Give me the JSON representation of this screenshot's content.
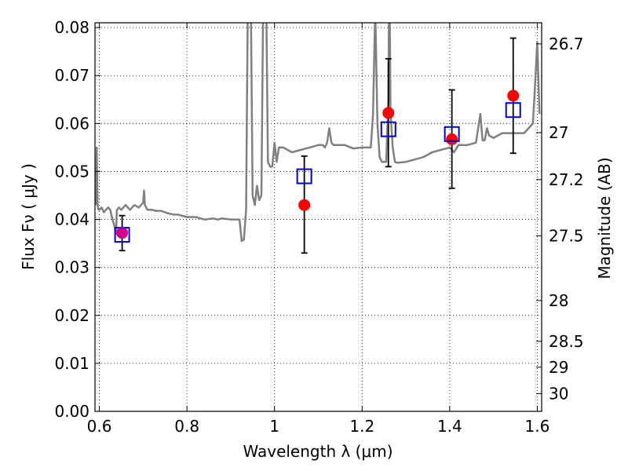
{
  "chart_data": {
    "type": "scatter",
    "title": "",
    "xlabel": "Wavelength  λ (μm)",
    "ylabel": "Flux  Fν  ( μJy )",
    "y2label": "Magnitude (AB)",
    "xlim": [
      0.59,
      1.61
    ],
    "ylim": [
      0.0,
      0.081
    ],
    "grid": true,
    "x_ticks": [
      "0.6",
      "0.8",
      "1",
      "1.2",
      "1.4",
      "1.6"
    ],
    "x_tick_values": [
      0.6,
      0.8,
      1.0,
      1.2,
      1.4,
      1.6
    ],
    "y_ticks": [
      "0.00",
      "0.01",
      "0.02",
      "0.03",
      "0.04",
      "0.05",
      "0.06",
      "0.07",
      "0.08"
    ],
    "y_tick_values": [
      0.0,
      0.01,
      0.02,
      0.03,
      0.04,
      0.05,
      0.06,
      0.07,
      0.08
    ],
    "y2_ticks": [
      {
        "label": "26.7",
        "flux": 0.0766
      },
      {
        "label": "27",
        "flux": 0.0581
      },
      {
        "label": "27.2",
        "flux": 0.0483
      },
      {
        "label": "27.5",
        "flux": 0.0366
      },
      {
        "label": "28",
        "flux": 0.0231
      },
      {
        "label": "28.5",
        "flux": 0.0146
      },
      {
        "label": "29",
        "flux": 0.0092
      },
      {
        "label": "30",
        "flux": 0.0037
      }
    ],
    "series": [
      {
        "kind": "line",
        "color": "#808080",
        "x": [
          0.592,
          0.594,
          0.596,
          0.598,
          0.6,
          0.605,
          0.61,
          0.615,
          0.62,
          0.625,
          0.63,
          0.635,
          0.638,
          0.64,
          0.645,
          0.65,
          0.66,
          0.67,
          0.68,
          0.69,
          0.7,
          0.702,
          0.704,
          0.71,
          0.72,
          0.73,
          0.74,
          0.75,
          0.76,
          0.77,
          0.78,
          0.8,
          0.82,
          0.84,
          0.86,
          0.87,
          0.88,
          0.9,
          0.92,
          0.925,
          0.93,
          0.935,
          0.94,
          0.945,
          0.95,
          0.955,
          0.96,
          0.965,
          0.97,
          0.975,
          0.98,
          0.985,
          0.99,
          0.995,
          1.0,
          1.005,
          1.01,
          1.02,
          1.04,
          1.06,
          1.08,
          1.1,
          1.11,
          1.115,
          1.12,
          1.125,
          1.13,
          1.135,
          1.14,
          1.16,
          1.18,
          1.2,
          1.21,
          1.22,
          1.225,
          1.23,
          1.235,
          1.24,
          1.245,
          1.25,
          1.255,
          1.26,
          1.262,
          1.265,
          1.27,
          1.275,
          1.28,
          1.3,
          1.32,
          1.34,
          1.36,
          1.38,
          1.4,
          1.41,
          1.42,
          1.44,
          1.46,
          1.47,
          1.475,
          1.48,
          1.485,
          1.49,
          1.5,
          1.52,
          1.54,
          1.56,
          1.57,
          1.58,
          1.59,
          1.595,
          1.6,
          1.605
        ],
        "y": [
          0.043,
          0.055,
          0.043,
          0.042,
          0.042,
          0.0425,
          0.0415,
          0.042,
          0.0425,
          0.042,
          0.04,
          0.0385,
          0.037,
          0.042,
          0.0425,
          0.042,
          0.043,
          0.042,
          0.043,
          0.0425,
          0.0435,
          0.046,
          0.043,
          0.042,
          0.042,
          0.0418,
          0.0418,
          0.0415,
          0.0412,
          0.041,
          0.041,
          0.0405,
          0.0405,
          0.04,
          0.0402,
          0.04,
          0.0402,
          0.04,
          0.04,
          0.0355,
          0.0358,
          0.042,
          0.095,
          0.095,
          0.045,
          0.043,
          0.047,
          0.044,
          0.045,
          0.095,
          0.095,
          0.052,
          0.051,
          0.051,
          0.056,
          0.052,
          0.055,
          0.055,
          0.054,
          0.0545,
          0.055,
          0.0555,
          0.0555,
          0.055,
          0.056,
          0.059,
          0.056,
          0.0555,
          0.0555,
          0.0555,
          0.0548,
          0.055,
          0.055,
          0.055,
          0.062,
          0.084,
          0.06,
          0.053,
          0.052,
          0.052,
          0.052,
          0.065,
          0.095,
          0.062,
          0.055,
          0.052,
          0.0518,
          0.052,
          0.0525,
          0.053,
          0.054,
          0.0545,
          0.055,
          0.054,
          0.0555,
          0.0555,
          0.056,
          0.062,
          0.0565,
          0.0565,
          0.059,
          0.0575,
          0.057,
          0.058,
          0.058,
          0.058,
          0.058,
          0.059,
          0.06,
          0.068,
          0.077,
          0.062
        ]
      },
      {
        "kind": "points",
        "name": "",
        "marker": "circle",
        "color": "#ff0000",
        "x": [
          0.652,
          1.068,
          1.26,
          1.405,
          1.545
        ],
        "y": [
          0.0372,
          0.043,
          0.0622,
          0.0567,
          0.0658
        ]
      },
      {
        "kind": "points",
        "name": "",
        "marker": "open-square",
        "color": "#0000cc",
        "x": [
          0.652,
          1.068,
          1.26,
          1.405,
          1.545
        ],
        "y": [
          0.0368,
          0.049,
          0.0588,
          0.0578,
          0.0628
        ]
      }
    ],
    "errorbars": [
      {
        "x": 0.652,
        "low": 0.0335,
        "high": 0.0408
      },
      {
        "x": 1.068,
        "low": 0.033,
        "high": 0.0532
      },
      {
        "x": 1.26,
        "low": 0.051,
        "high": 0.0735
      },
      {
        "x": 1.405,
        "low": 0.0465,
        "high": 0.067
      },
      {
        "x": 1.545,
        "low": 0.0538,
        "high": 0.0778
      }
    ]
  }
}
